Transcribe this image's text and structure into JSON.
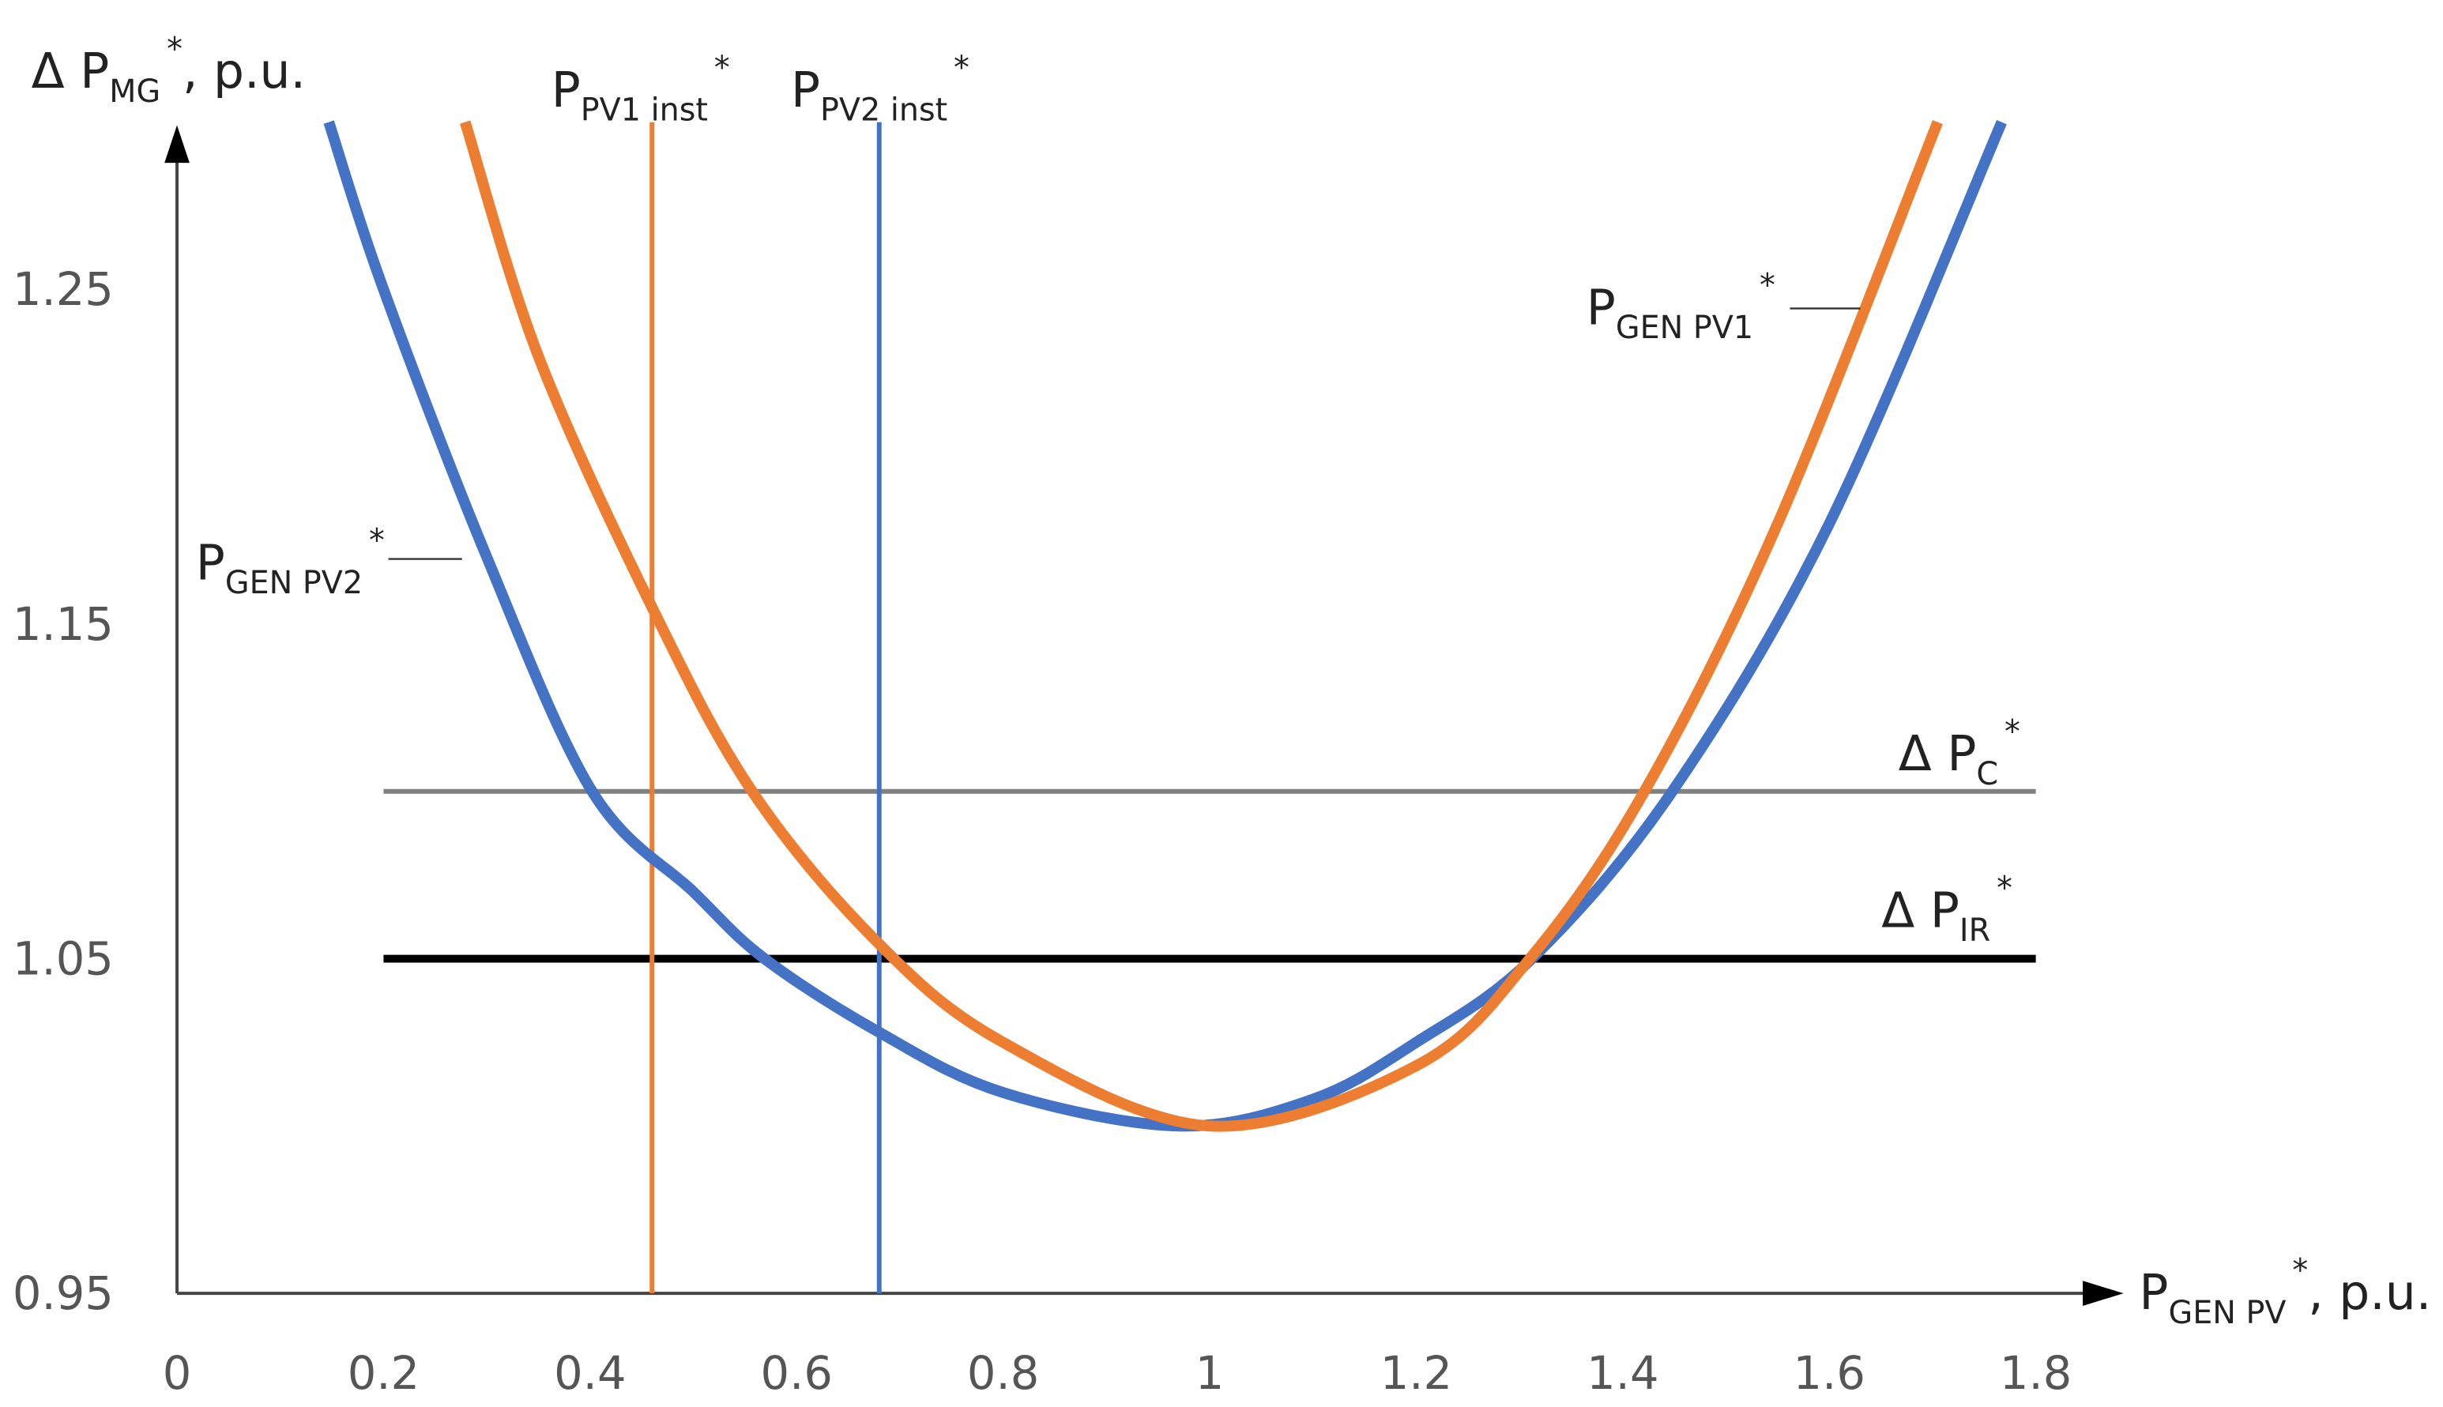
{
  "chart_data": {
    "type": "line",
    "y_label": {
      "base": "Δ P",
      "sub": "MG",
      "sup": "*",
      "suffix": ", p.u."
    },
    "x_label": {
      "base": "P",
      "sub": "GEN PV",
      "sup": "*",
      "suffix": ", p.u."
    },
    "xlim": [
      0,
      1.8
    ],
    "ylim": [
      0.95,
      1.3
    ],
    "xticks": [
      0,
      0.2,
      0.4,
      0.6,
      0.8,
      1,
      1.2,
      1.4,
      1.6,
      1.8
    ],
    "yticks": [
      0.95,
      1.05,
      1.15,
      1.25
    ],
    "series": [
      {
        "label": {
          "base": "P",
          "sub": "GEN PV2",
          "sup": "*"
        },
        "color": "#4472c4",
        "width": 7,
        "x": [
          0.147,
          0.2,
          0.3,
          0.402,
          0.5,
          0.569,
          0.68,
          0.8,
          0.97,
          1.1,
          1.2,
          1.312,
          1.448,
          1.6,
          1.767
        ],
        "values": [
          1.3,
          1.25,
          1.17,
          1.1,
          1.07,
          1.05,
          1.028,
          1.01,
          1.0,
          1.008,
          1.025,
          1.05,
          1.1,
          1.18,
          1.3
        ]
      },
      {
        "label": {
          "base": "P",
          "sub": "GEN PV1",
          "sup": "*"
        },
        "color": "#ed7d31",
        "width": 7,
        "x": [
          0.279,
          0.35,
          0.46,
          0.557,
          0.678,
          0.8,
          1.0,
          1.2,
          1.31,
          1.421,
          1.55,
          1.705
        ],
        "values": [
          1.3,
          1.23,
          1.155,
          1.1,
          1.055,
          1.025,
          1.0,
          1.018,
          1.05,
          1.1,
          1.18,
          1.3
        ]
      },
      {
        "label": {
          "base": "Δ P",
          "sub": "C",
          "sup": "*"
        },
        "color": "#808080",
        "width": 3,
        "x": [
          0.2,
          1.8
        ],
        "values": [
          1.1,
          1.1
        ]
      },
      {
        "label": {
          "base": "Δ P",
          "sub": "IR",
          "sup": "*"
        },
        "color": "#000000",
        "width": 5,
        "x": [
          0.2,
          1.8
        ],
        "values": [
          1.05,
          1.05
        ]
      },
      {
        "label": {
          "base": "P",
          "sub": "PV1 inst",
          "sup": "*"
        },
        "color": "#ed7d31",
        "width": 3,
        "x": [
          0.46,
          0.46
        ],
        "values": [
          0.95,
          1.3
        ]
      },
      {
        "label": {
          "base": "P",
          "sub": "PV2 inst",
          "sup": "*"
        },
        "color": "#4472c4",
        "width": 3,
        "x": [
          0.68,
          0.68
        ],
        "values": [
          0.95,
          1.3
        ]
      }
    ]
  }
}
